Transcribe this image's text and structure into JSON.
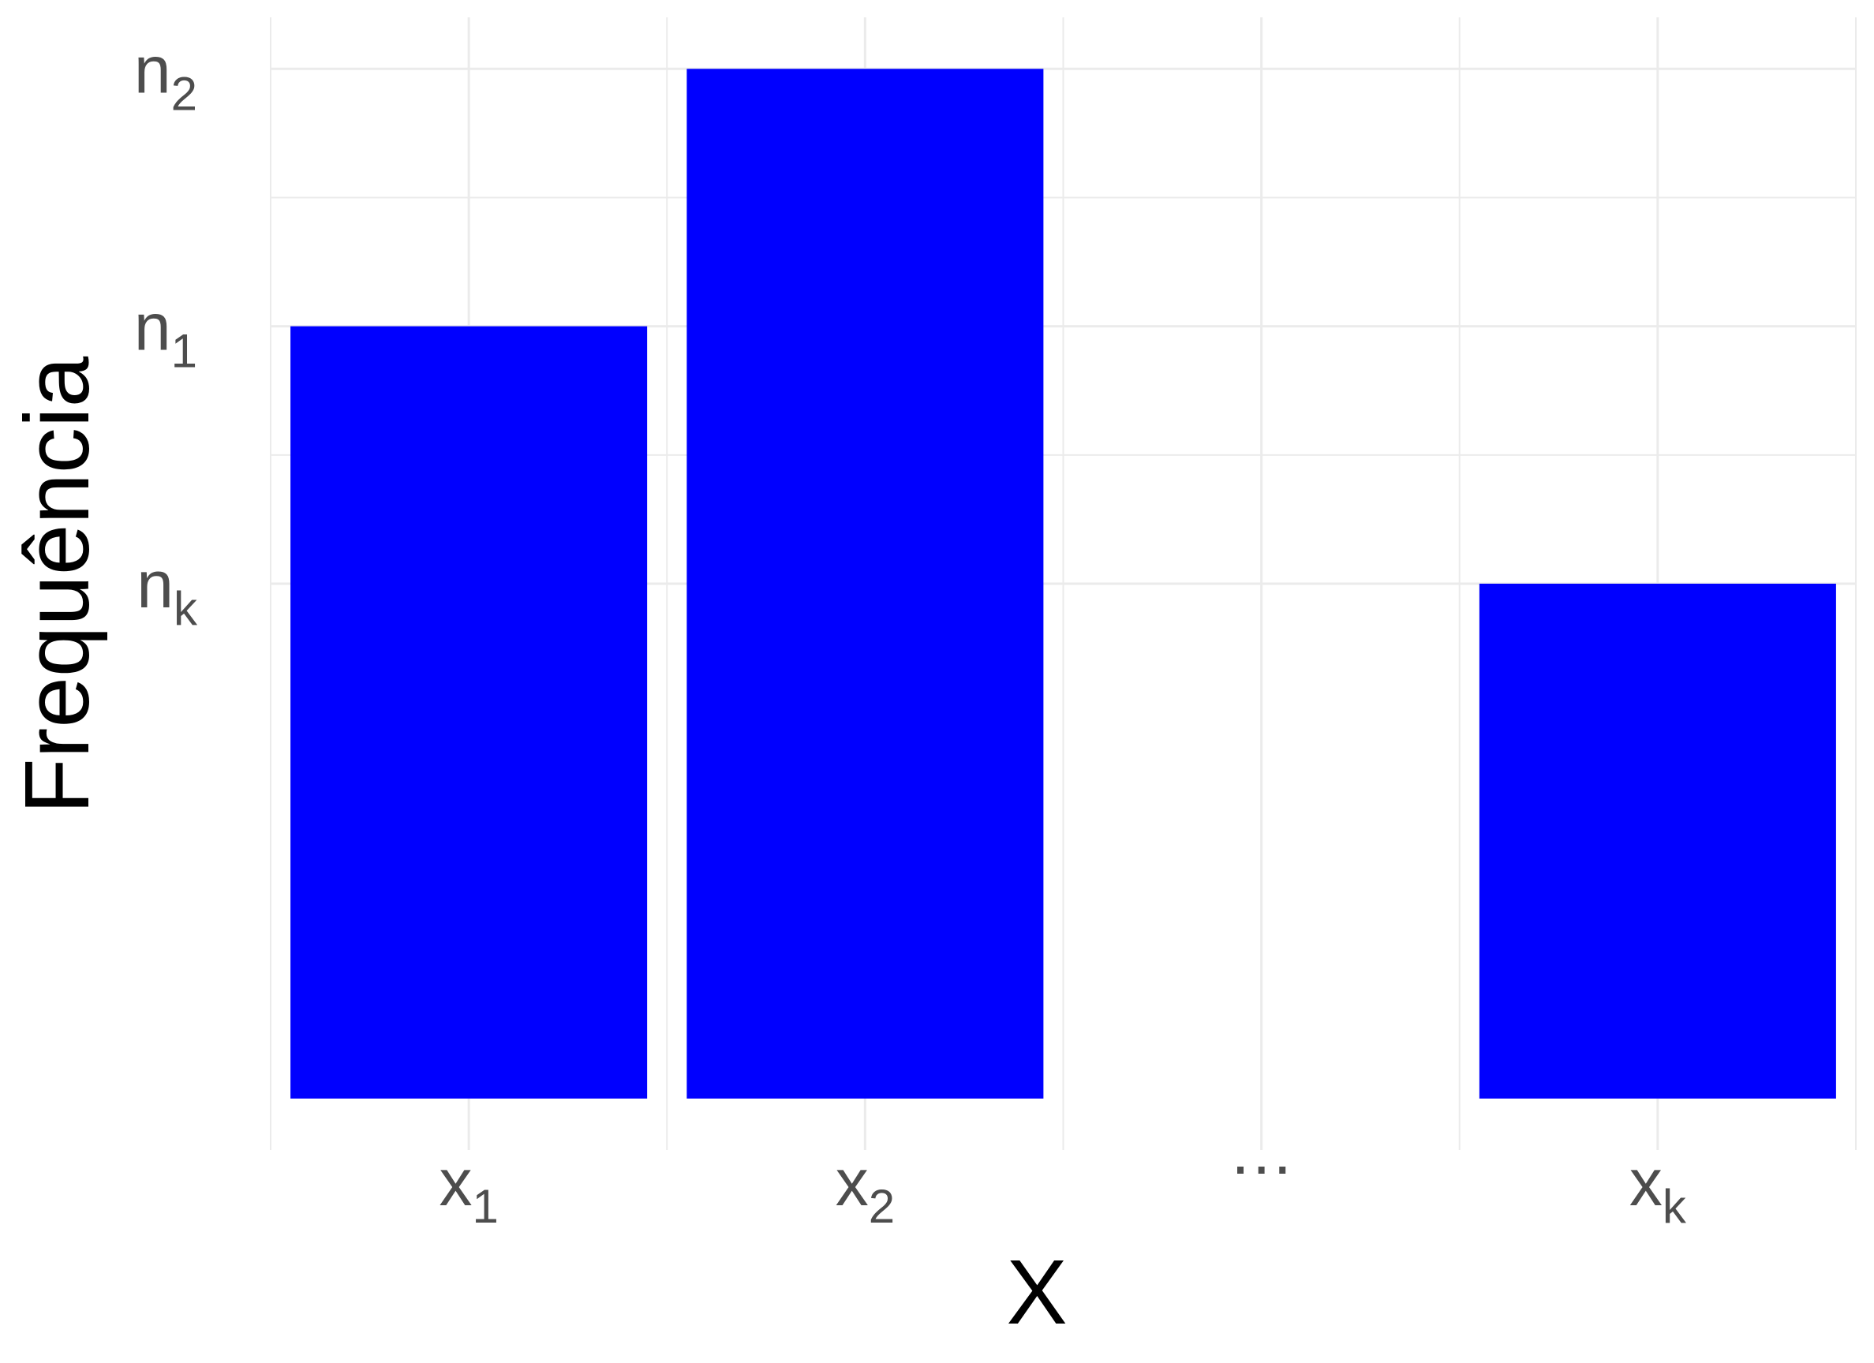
{
  "chart_data": {
    "type": "bar",
    "title": "",
    "xlabel": "X",
    "ylabel": "Frequência",
    "categories": [
      {
        "base": "x",
        "sub": "1"
      },
      {
        "base": "x",
        "sub": "2"
      },
      {
        "base": "…",
        "sub": ""
      },
      {
        "base": "x",
        "sub": "k"
      }
    ],
    "values": [
      3,
      4,
      null,
      2
    ],
    "y_ticks": [
      {
        "value": 2,
        "base": "n",
        "sub": "k"
      },
      {
        "value": 3,
        "base": "n",
        "sub": "1"
      },
      {
        "value": 4,
        "base": "n",
        "sub": "2"
      }
    ],
    "ylim": [
      -0.2,
      4.2
    ],
    "grid": true,
    "bar_color": "#0000ff",
    "grid_color": "#ebebeb",
    "tick_label_color": "#4d4d4d",
    "axis_title_color": "#000000"
  }
}
